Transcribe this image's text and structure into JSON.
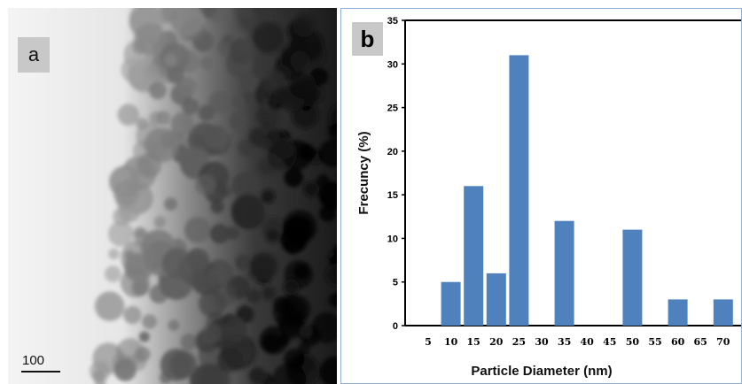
{
  "panel_a": {
    "label": "a",
    "scale_bar_text": "100"
  },
  "panel_b": {
    "label": "b"
  },
  "chart_data": {
    "type": "bar",
    "title": "",
    "xlabel": "Particle Diameter (nm)",
    "ylabel": "Frecuncy (%)",
    "ylim": [
      0,
      35
    ],
    "yticks": [
      0,
      5,
      10,
      15,
      20,
      25,
      30,
      35
    ],
    "categories": [
      "5",
      "10",
      "15",
      "20",
      "25",
      "30",
      "35",
      "40",
      "45",
      "50",
      "55",
      "60",
      "65",
      "70"
    ],
    "values": [
      0,
      5,
      16,
      6,
      31,
      0,
      12,
      0,
      0,
      11,
      0,
      3,
      0,
      3
    ],
    "bar_color": "#4f81bd",
    "grid": false
  }
}
